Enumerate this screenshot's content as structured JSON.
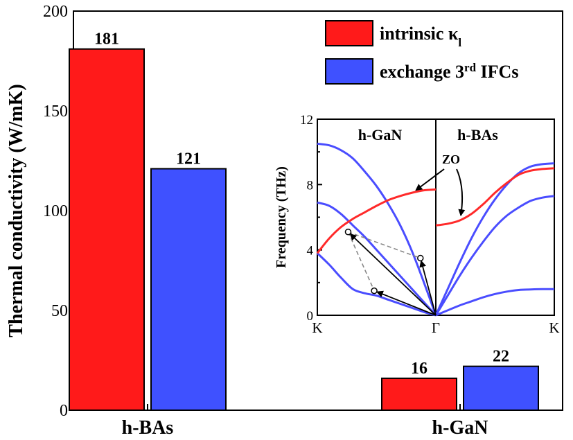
{
  "chart_data": [
    {
      "type": "bar",
      "categories": [
        "h-BAs",
        "h-GaN"
      ],
      "series": [
        {
          "name": "intrinsic κl",
          "color": "#ff1a1a",
          "values": [
            181,
            16
          ]
        },
        {
          "name": "exchange 3rd IFCs",
          "color": "#3f51ff",
          "values": [
            121,
            22
          ]
        }
      ],
      "data_labels": [
        "181",
        "121",
        "16",
        "22"
      ],
      "ylabel": "Thermal conductivity (W/mK)",
      "xlabel": "",
      "ylim": [
        0,
        200
      ],
      "yticks": [
        "0",
        "50",
        "100",
        "150",
        "200"
      ],
      "legend": {
        "placement": "top-right",
        "entries": [
          {
            "prefix": "intrinsic κ",
            "sub": "l",
            "sup": ""
          },
          {
            "prefix": "exchange 3",
            "sup": "rd",
            "suffix": " IFCs",
            "sub": ""
          }
        ]
      }
    },
    {
      "type": "line",
      "inset": true,
      "ylabel": "Frequency (THz)",
      "ylim": [
        0,
        12
      ],
      "yticks": [
        "0",
        "4",
        "8",
        "12"
      ],
      "xticks": [
        "K",
        "Γ",
        "K"
      ],
      "panels": [
        "h-GaN",
        "h-BAs"
      ],
      "annotation": "ZO",
      "colors": {
        "zo_branch": "#ff2a2a",
        "other_branches": "#4a4dff"
      },
      "series": [
        {
          "panel": "h-GaN",
          "color": "#ff2a2a",
          "x": [
            0,
            0.1,
            0.2,
            0.3,
            0.4,
            0.5,
            0.6,
            0.7,
            0.8,
            0.9,
            1.0
          ],
          "y": [
            3.8,
            4.7,
            5.4,
            5.9,
            6.3,
            6.7,
            7.05,
            7.3,
            7.5,
            7.65,
            7.7
          ]
        },
        {
          "panel": "h-GaN",
          "color": "#4a4dff",
          "x": [
            0,
            0.1,
            0.2,
            0.3,
            0.4,
            0.5,
            0.6,
            0.7,
            0.8,
            0.9,
            1.0
          ],
          "y": [
            10.5,
            10.4,
            10.1,
            9.6,
            8.8,
            7.9,
            6.8,
            5.5,
            3.9,
            2.0,
            0
          ]
        },
        {
          "panel": "h-GaN",
          "color": "#4a4dff",
          "x": [
            0,
            0.1,
            0.2,
            0.3,
            0.4,
            0.5,
            0.6,
            0.7,
            0.8,
            0.9,
            1.0
          ],
          "y": [
            6.9,
            6.7,
            6.2,
            5.5,
            4.8,
            4.0,
            3.2,
            2.4,
            1.6,
            0.8,
            0
          ]
        },
        {
          "panel": "h-GaN",
          "color": "#4a4dff",
          "x": [
            0,
            0.1,
            0.2,
            0.3,
            0.4,
            0.5,
            0.6,
            0.7,
            0.8,
            0.9,
            1.0
          ],
          "y": [
            3.8,
            3.1,
            2.3,
            1.6,
            1.35,
            1.2,
            0.95,
            0.7,
            0.45,
            0.2,
            0
          ]
        },
        {
          "panel": "h-BAs",
          "color": "#ff2a2a",
          "x": [
            0,
            0.1,
            0.2,
            0.3,
            0.4,
            0.5,
            0.6,
            0.7,
            0.8,
            0.9,
            1.0
          ],
          "y": [
            5.5,
            5.6,
            5.8,
            6.2,
            6.8,
            7.5,
            8.1,
            8.6,
            8.85,
            8.95,
            9.0
          ]
        },
        {
          "panel": "h-BAs",
          "color": "#4a4dff",
          "x": [
            0,
            0.1,
            0.2,
            0.3,
            0.4,
            0.5,
            0.6,
            0.7,
            0.8,
            0.9,
            1.0
          ],
          "y": [
            0,
            1.6,
            3.2,
            4.7,
            6.0,
            7.1,
            8.0,
            8.7,
            9.1,
            9.25,
            9.3
          ]
        },
        {
          "panel": "h-BAs",
          "color": "#4a4dff",
          "x": [
            0,
            0.1,
            0.2,
            0.3,
            0.4,
            0.5,
            0.6,
            0.7,
            0.8,
            0.9,
            1.0
          ],
          "y": [
            0,
            1.2,
            2.4,
            3.5,
            4.5,
            5.4,
            6.1,
            6.6,
            7.0,
            7.2,
            7.3
          ]
        },
        {
          "panel": "h-BAs",
          "color": "#4a4dff",
          "x": [
            0,
            0.1,
            0.2,
            0.3,
            0.4,
            0.5,
            0.6,
            0.7,
            0.8,
            0.9,
            1.0
          ],
          "y": [
            0,
            0.3,
            0.6,
            0.85,
            1.1,
            1.3,
            1.45,
            1.55,
            1.58,
            1.6,
            1.6
          ]
        }
      ],
      "markers": [
        {
          "x": 0.26,
          "y": 5.1
        },
        {
          "x": 0.87,
          "y": 3.5
        },
        {
          "x": 0.48,
          "y": 1.5
        }
      ]
    }
  ]
}
